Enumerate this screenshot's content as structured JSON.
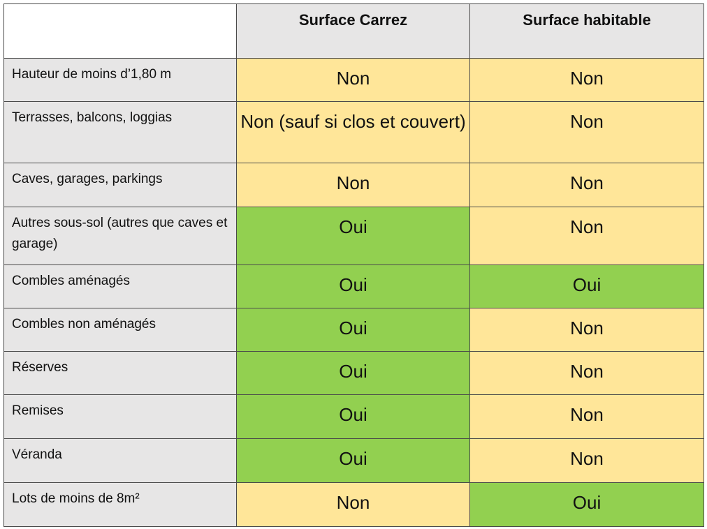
{
  "table": {
    "columns": [
      "",
      "Surface Carrez",
      "Surface habitable"
    ],
    "rows": [
      {
        "label": "Hauteur de moins d’1,80 m",
        "carrez": "Non",
        "habitable": "Non"
      },
      {
        "label": "Terrasses, balcons, loggias",
        "carrez": "Non (sauf si clos et couvert)",
        "habitable": "Non"
      },
      {
        "label": "Caves, garages, parkings",
        "carrez": "Non",
        "habitable": "Non"
      },
      {
        "label": "Autres sous-sol (autres que caves et garage)",
        "carrez": "Oui",
        "habitable": "Non"
      },
      {
        "label": "Combles aménagés",
        "carrez": "Oui",
        "habitable": "Oui"
      },
      {
        "label": "Combles non aménagés",
        "carrez": "Oui",
        "habitable": "Non"
      },
      {
        "label": "Réserves",
        "carrez": "Oui",
        "habitable": "Non"
      },
      {
        "label": "Remises",
        "carrez": "Oui",
        "habitable": "Non"
      },
      {
        "label": "Véranda",
        "carrez": "Oui",
        "habitable": "Non"
      },
      {
        "label": "Lots de moins de 8m²",
        "carrez": "Non",
        "habitable": "Oui"
      }
    ]
  },
  "colors": {
    "non": "#ffe699",
    "oui": "#92d050",
    "header": "#e7e6e6"
  }
}
